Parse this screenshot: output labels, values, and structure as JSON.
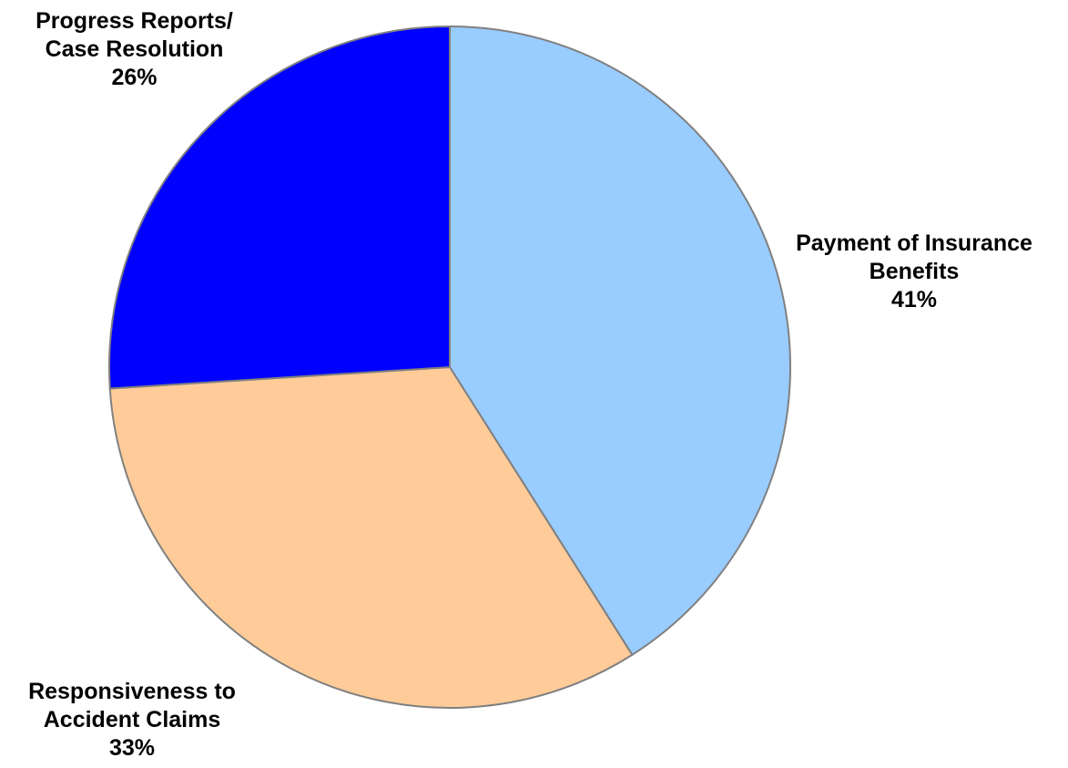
{
  "chart_data": {
    "type": "pie",
    "title": "",
    "start_angle_deg": 0,
    "direction": "clockwise",
    "slices": [
      {
        "label_lines": [
          "Payment of Insurance",
          "Benefits"
        ],
        "percent_label": "41%",
        "value": 41,
        "color": "#99CCFF"
      },
      {
        "label_lines": [
          "Responsiveness to",
          "Accident Claims"
        ],
        "percent_label": "33%",
        "value": 33,
        "color": "#FFCC99"
      },
      {
        "label_lines": [
          "Progress Reports/",
          "Case Resolution"
        ],
        "percent_label": "26%",
        "value": 26,
        "color": "#0000FF"
      }
    ],
    "border_color": "#808080",
    "legend": "none"
  }
}
